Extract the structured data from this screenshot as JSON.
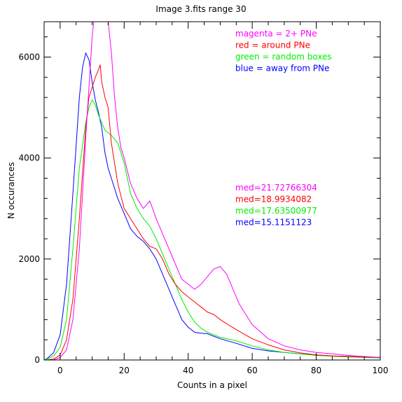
{
  "chart_data": {
    "type": "line",
    "title": "Image 3.fits   range 30",
    "xlabel": "Counts in a pixel",
    "ylabel": "N occurances",
    "xlim": [
      -5,
      100
    ],
    "ylim": [
      0,
      6700
    ],
    "grid": false,
    "xticks": [
      0,
      20,
      40,
      60,
      80,
      100
    ],
    "yticks": [
      0,
      2000,
      4000,
      6000
    ],
    "xtick_labels": [
      "0",
      "20",
      "40",
      "60",
      "80",
      "100"
    ],
    "ytick_labels": [
      "0",
      "2000",
      "4000",
      "6000"
    ],
    "legend": {
      "placement": "top-right",
      "entries": [
        {
          "text": "magenta = 2+ PNe",
          "color": "#ff00ff"
        },
        {
          "text": "red = around PNe",
          "color": "#ff0000"
        },
        {
          "text": "green = random boxes",
          "color": "#00ee00"
        },
        {
          "text": "blue = away from PNe",
          "color": "#0000ff"
        }
      ]
    },
    "stats": [
      {
        "text": "med=21.72766304",
        "color": "#ff00ff"
      },
      {
        "text": "med=18.9934082",
        "color": "#ff0000"
      },
      {
        "text": "med=17.63500977",
        "color": "#00ee00"
      },
      {
        "text": "med=15.1151123",
        "color": "#0000ff"
      }
    ],
    "series": [
      {
        "color": "#0000ff",
        "x": [
          -5,
          -4,
          -2,
          0,
          2,
          4,
          6,
          7,
          8,
          9,
          10,
          11,
          12,
          13,
          14,
          15,
          16,
          18,
          20,
          22,
          24,
          26,
          28,
          30,
          32,
          34,
          36,
          38,
          40,
          42,
          44,
          46,
          48,
          50,
          55,
          60,
          65,
          70,
          75,
          80,
          85,
          90,
          95,
          100
        ],
        "y": [
          0,
          30,
          150,
          500,
          1500,
          3300,
          5200,
          5800,
          6080,
          5950,
          5500,
          5150,
          4900,
          4600,
          4100,
          3800,
          3600,
          3200,
          2900,
          2600,
          2450,
          2350,
          2200,
          2000,
          1700,
          1400,
          1100,
          800,
          650,
          550,
          530,
          520,
          470,
          420,
          330,
          230,
          180,
          150,
          120,
          100,
          80,
          70,
          60,
          50
        ]
      },
      {
        "color": "#00ee00",
        "x": [
          -5,
          -4,
          -2,
          0,
          2,
          4,
          6,
          8,
          9,
          10,
          11,
          12,
          13,
          14,
          15,
          16,
          18,
          20,
          22,
          24,
          26,
          28,
          30,
          32,
          34,
          36,
          38,
          40,
          42,
          44,
          46,
          48,
          50,
          55,
          60,
          65,
          70,
          75,
          80,
          85,
          90,
          95,
          100
        ],
        "y": [
          0,
          20,
          80,
          250,
          800,
          2200,
          3800,
          4700,
          5000,
          5150,
          5050,
          4850,
          4700,
          4550,
          4500,
          4450,
          4300,
          3900,
          3300,
          3000,
          2800,
          2650,
          2400,
          2100,
          1800,
          1500,
          1200,
          950,
          750,
          630,
          550,
          500,
          450,
          380,
          280,
          200,
          150,
          120,
          90,
          75,
          60,
          50,
          40
        ]
      },
      {
        "color": "#ff0000",
        "x": [
          -5,
          -4,
          -2,
          0,
          2,
          4,
          6,
          8,
          9,
          10,
          11,
          12,
          12.5,
          13,
          14,
          15,
          16,
          18,
          20,
          22,
          24,
          26,
          28,
          30,
          32,
          34,
          36,
          38,
          40,
          42,
          44,
          46,
          48,
          50,
          55,
          60,
          65,
          70,
          75,
          80,
          85,
          90,
          95,
          100
        ],
        "y": [
          0,
          0,
          20,
          100,
          400,
          1200,
          2800,
          4600,
          5200,
          5400,
          5600,
          5750,
          5850,
          5500,
          5200,
          5000,
          4300,
          3500,
          3000,
          2800,
          2600,
          2400,
          2250,
          2200,
          2000,
          1700,
          1500,
          1350,
          1250,
          1150,
          1050,
          950,
          900,
          800,
          600,
          420,
          300,
          200,
          140,
          100,
          80,
          70,
          60,
          50
        ]
      },
      {
        "color": "#ff00ff",
        "x": [
          -5,
          -4,
          -2,
          0,
          2,
          4,
          6,
          8,
          9,
          10,
          10.5,
          11,
          12,
          13,
          14,
          15,
          16,
          17,
          18,
          19,
          20,
          22,
          24,
          26,
          28,
          30,
          32,
          34,
          36,
          38,
          40,
          42,
          44,
          46,
          48,
          50,
          52,
          54,
          56,
          58,
          60,
          65,
          70,
          75,
          80,
          85,
          90,
          95,
          100
        ],
        "y": [
          0,
          0,
          0,
          50,
          200,
          800,
          2200,
          4400,
          5400,
          6400,
          6700,
          6700,
          6700,
          6700,
          6700,
          6700,
          6100,
          5200,
          4600,
          4200,
          4000,
          3500,
          3200,
          3000,
          3150,
          2800,
          2500,
          2200,
          1900,
          1600,
          1500,
          1400,
          1500,
          1650,
          1800,
          1850,
          1700,
          1400,
          1100,
          900,
          700,
          420,
          280,
          200,
          150,
          120,
          90,
          70,
          50
        ]
      }
    ]
  }
}
